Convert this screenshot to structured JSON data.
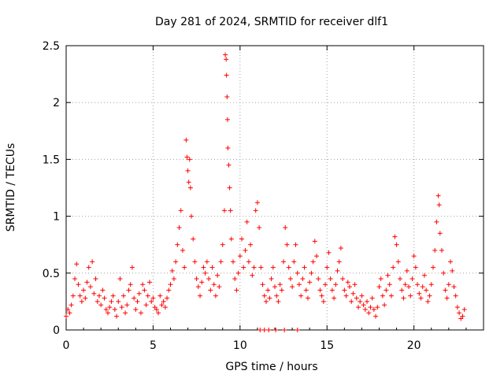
{
  "chart_data": {
    "type": "scatter",
    "title": "Day 281 of 2024, SRMTID for receiver dlf1",
    "xlabel": "GPS time / hours",
    "ylabel": "SRMTID / TECUs",
    "xlim": [
      0,
      24
    ],
    "ylim": [
      0,
      2.5
    ],
    "x_ticks": [
      0,
      5,
      10,
      15,
      20
    ],
    "x_tick_labels": [
      "0",
      "5",
      "10",
      "15",
      "20"
    ],
    "y_ticks": [
      0,
      0.5,
      1,
      1.5,
      2,
      2.5
    ],
    "y_tick_labels": [
      "0",
      "0.5",
      "1",
      "1.5",
      "2",
      "2.5"
    ],
    "grid": true,
    "marker": "+",
    "color": "#ff0000",
    "series": [
      {
        "name": "SRMTID",
        "points": [
          [
            0.0,
            0.12
          ],
          [
            0.1,
            0.18
          ],
          [
            0.2,
            0.15
          ],
          [
            0.3,
            0.22
          ],
          [
            0.4,
            0.3
          ],
          [
            0.5,
            0.45
          ],
          [
            0.6,
            0.58
          ],
          [
            0.7,
            0.4
          ],
          [
            0.8,
            0.3
          ],
          [
            0.9,
            0.25
          ],
          [
            1.0,
            0.35
          ],
          [
            1.1,
            0.28
          ],
          [
            1.2,
            0.42
          ],
          [
            1.3,
            0.55
          ],
          [
            1.4,
            0.38
          ],
          [
            1.5,
            0.6
          ],
          [
            1.6,
            0.32
          ],
          [
            1.7,
            0.45
          ],
          [
            1.8,
            0.25
          ],
          [
            1.9,
            0.3
          ],
          [
            2.0,
            0.22
          ],
          [
            2.1,
            0.35
          ],
          [
            2.2,
            0.28
          ],
          [
            2.3,
            0.18
          ],
          [
            2.4,
            0.15
          ],
          [
            2.5,
            0.2
          ],
          [
            2.6,
            0.25
          ],
          [
            2.7,
            0.3
          ],
          [
            2.8,
            0.18
          ],
          [
            2.9,
            0.12
          ],
          [
            3.0,
            0.25
          ],
          [
            3.1,
            0.45
          ],
          [
            3.2,
            0.2
          ],
          [
            3.3,
            0.3
          ],
          [
            3.4,
            0.15
          ],
          [
            3.5,
            0.22
          ],
          [
            3.6,
            0.35
          ],
          [
            3.7,
            0.4
          ],
          [
            3.8,
            0.55
          ],
          [
            3.9,
            0.28
          ],
          [
            4.0,
            0.18
          ],
          [
            4.1,
            0.25
          ],
          [
            4.2,
            0.32
          ],
          [
            4.3,
            0.15
          ],
          [
            4.4,
            0.4
          ],
          [
            4.5,
            0.35
          ],
          [
            4.6,
            0.22
          ],
          [
            4.7,
            0.3
          ],
          [
            4.8,
            0.42
          ],
          [
            4.9,
            0.25
          ],
          [
            5.0,
            0.28
          ],
          [
            5.1,
            0.2
          ],
          [
            5.2,
            0.18
          ],
          [
            5.3,
            0.15
          ],
          [
            5.4,
            0.3
          ],
          [
            5.5,
            0.22
          ],
          [
            5.6,
            0.25
          ],
          [
            5.7,
            0.2
          ],
          [
            5.8,
            0.28
          ],
          [
            5.9,
            0.35
          ],
          [
            6.0,
            0.4
          ],
          [
            6.1,
            0.52
          ],
          [
            6.2,
            0.45
          ],
          [
            6.3,
            0.6
          ],
          [
            6.4,
            0.75
          ],
          [
            6.5,
            0.9
          ],
          [
            6.6,
            1.05
          ],
          [
            6.7,
            0.7
          ],
          [
            6.8,
            0.55
          ],
          [
            6.9,
            1.67
          ],
          [
            6.95,
            1.52
          ],
          [
            7.0,
            1.4
          ],
          [
            7.05,
            1.3
          ],
          [
            7.1,
            1.5
          ],
          [
            7.15,
            1.25
          ],
          [
            7.2,
            1.0
          ],
          [
            7.3,
            0.8
          ],
          [
            7.4,
            0.6
          ],
          [
            7.5,
            0.45
          ],
          [
            7.6,
            0.38
          ],
          [
            7.7,
            0.3
          ],
          [
            7.8,
            0.42
          ],
          [
            7.9,
            0.55
          ],
          [
            8.0,
            0.5
          ],
          [
            8.1,
            0.6
          ],
          [
            8.2,
            0.45
          ],
          [
            8.3,
            0.35
          ],
          [
            8.4,
            0.55
          ],
          [
            8.5,
            0.4
          ],
          [
            8.6,
            0.3
          ],
          [
            8.7,
            0.48
          ],
          [
            8.8,
            0.38
          ],
          [
            8.9,
            0.6
          ],
          [
            9.0,
            0.75
          ],
          [
            9.1,
            1.05
          ],
          [
            9.15,
            2.42
          ],
          [
            9.2,
            2.38
          ],
          [
            9.22,
            2.24
          ],
          [
            9.25,
            2.05
          ],
          [
            9.28,
            1.85
          ],
          [
            9.3,
            1.6
          ],
          [
            9.35,
            1.45
          ],
          [
            9.4,
            1.25
          ],
          [
            9.45,
            1.05
          ],
          [
            9.5,
            0.8
          ],
          [
            9.6,
            0.6
          ],
          [
            9.7,
            0.45
          ],
          [
            9.8,
            0.35
          ],
          [
            9.9,
            0.5
          ],
          [
            10.0,
            0.65
          ],
          [
            10.1,
            0.8
          ],
          [
            10.2,
            0.55
          ],
          [
            10.3,
            0.7
          ],
          [
            10.4,
            0.95
          ],
          [
            10.5,
            0.6
          ],
          [
            10.6,
            0.75
          ],
          [
            10.7,
            0.48
          ],
          [
            10.8,
            0.55
          ],
          [
            10.9,
            1.05
          ],
          [
            11.0,
            1.12
          ],
          [
            11.1,
            0.9
          ],
          [
            11.2,
            0.55
          ],
          [
            11.3,
            0.4
          ],
          [
            11.4,
            0.3
          ],
          [
            11.5,
            0.25
          ],
          [
            11.6,
            0.35
          ],
          [
            11.7,
            0.28
          ],
          [
            11.8,
            0.45
          ],
          [
            11.9,
            0.55
          ],
          [
            12.0,
            0.38
          ],
          [
            12.1,
            0.3
          ],
          [
            12.2,
            0.25
          ],
          [
            12.3,
            0.4
          ],
          [
            12.4,
            0.35
          ],
          [
            12.5,
            0.6
          ],
          [
            12.6,
            0.9
          ],
          [
            12.7,
            0.75
          ],
          [
            12.8,
            0.55
          ],
          [
            12.9,
            0.45
          ],
          [
            13.0,
            0.38
          ],
          [
            13.1,
            0.6
          ],
          [
            13.2,
            0.75
          ],
          [
            13.3,
            0.5
          ],
          [
            13.4,
            0.4
          ],
          [
            13.5,
            0.3
          ],
          [
            13.6,
            0.45
          ],
          [
            13.7,
            0.55
          ],
          [
            13.8,
            0.35
          ],
          [
            13.9,
            0.28
          ],
          [
            14.0,
            0.42
          ],
          [
            14.1,
            0.5
          ],
          [
            14.2,
            0.6
          ],
          [
            14.3,
            0.78
          ],
          [
            14.4,
            0.65
          ],
          [
            14.5,
            0.45
          ],
          [
            14.6,
            0.35
          ],
          [
            14.7,
            0.3
          ],
          [
            14.8,
            0.25
          ],
          [
            14.9,
            0.4
          ],
          [
            15.0,
            0.55
          ],
          [
            15.1,
            0.68
          ],
          [
            15.2,
            0.45
          ],
          [
            15.3,
            0.35
          ],
          [
            15.4,
            0.28
          ],
          [
            15.5,
            0.4
          ],
          [
            15.6,
            0.52
          ],
          [
            15.7,
            0.6
          ],
          [
            15.8,
            0.72
          ],
          [
            15.9,
            0.45
          ],
          [
            16.0,
            0.35
          ],
          [
            16.1,
            0.3
          ],
          [
            16.2,
            0.42
          ],
          [
            16.3,
            0.38
          ],
          [
            16.4,
            0.25
          ],
          [
            16.5,
            0.32
          ],
          [
            16.6,
            0.4
          ],
          [
            16.7,
            0.28
          ],
          [
            16.8,
            0.2
          ],
          [
            16.9,
            0.25
          ],
          [
            17.0,
            0.3
          ],
          [
            17.1,
            0.22
          ],
          [
            17.2,
            0.18
          ],
          [
            17.3,
            0.25
          ],
          [
            17.4,
            0.15
          ],
          [
            17.5,
            0.2
          ],
          [
            17.6,
            0.28
          ],
          [
            17.7,
            0.18
          ],
          [
            17.8,
            0.12
          ],
          [
            17.9,
            0.2
          ],
          [
            18.0,
            0.38
          ],
          [
            18.1,
            0.45
          ],
          [
            18.2,
            0.3
          ],
          [
            18.3,
            0.22
          ],
          [
            18.4,
            0.35
          ],
          [
            18.5,
            0.48
          ],
          [
            18.6,
            0.4
          ],
          [
            18.7,
            0.3
          ],
          [
            18.8,
            0.55
          ],
          [
            18.9,
            0.82
          ],
          [
            19.0,
            0.75
          ],
          [
            19.1,
            0.6
          ],
          [
            19.2,
            0.45
          ],
          [
            19.3,
            0.35
          ],
          [
            19.4,
            0.28
          ],
          [
            19.5,
            0.4
          ],
          [
            19.6,
            0.52
          ],
          [
            19.7,
            0.38
          ],
          [
            19.8,
            0.3
          ],
          [
            19.9,
            0.45
          ],
          [
            20.0,
            0.65
          ],
          [
            20.1,
            0.55
          ],
          [
            20.2,
            0.4
          ],
          [
            20.3,
            0.32
          ],
          [
            20.4,
            0.28
          ],
          [
            20.5,
            0.38
          ],
          [
            20.6,
            0.48
          ],
          [
            20.7,
            0.35
          ],
          [
            20.8,
            0.25
          ],
          [
            20.9,
            0.3
          ],
          [
            21.0,
            0.4
          ],
          [
            21.1,
            0.55
          ],
          [
            21.2,
            0.7
          ],
          [
            21.3,
            0.95
          ],
          [
            21.4,
            1.18
          ],
          [
            21.45,
            1.1
          ],
          [
            21.5,
            0.85
          ],
          [
            21.6,
            0.7
          ],
          [
            21.7,
            0.5
          ],
          [
            21.8,
            0.35
          ],
          [
            21.9,
            0.28
          ],
          [
            22.0,
            0.4
          ],
          [
            22.1,
            0.6
          ],
          [
            22.2,
            0.52
          ],
          [
            22.3,
            0.38
          ],
          [
            22.4,
            0.3
          ],
          [
            22.5,
            0.2
          ],
          [
            22.6,
            0.15
          ],
          [
            22.7,
            0.1
          ],
          [
            22.8,
            0.12
          ],
          [
            22.9,
            0.18
          ],
          [
            11.15,
            0.0
          ],
          [
            11.4,
            0.0
          ],
          [
            11.65,
            0.0
          ],
          [
            12.05,
            0.0
          ],
          [
            12.55,
            0.0
          ],
          [
            13.3,
            0.0
          ]
        ]
      }
    ]
  }
}
